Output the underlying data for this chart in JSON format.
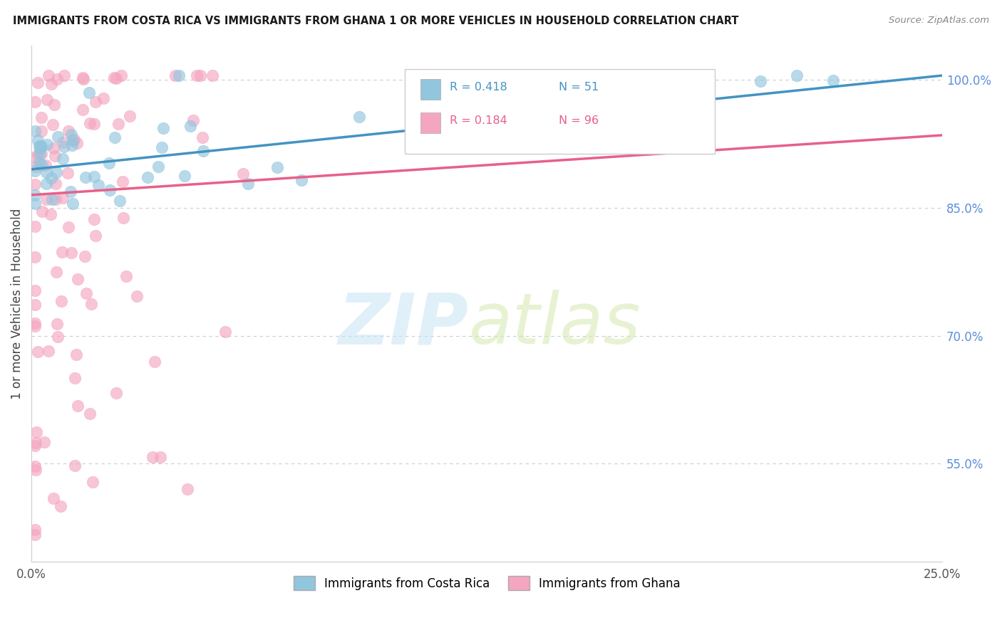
{
  "title": "IMMIGRANTS FROM COSTA RICA VS IMMIGRANTS FROM GHANA 1 OR MORE VEHICLES IN HOUSEHOLD CORRELATION CHART",
  "source": "Source: ZipAtlas.com",
  "ylabel": "1 or more Vehicles in Household",
  "ytick_labels": [
    "55.0%",
    "70.0%",
    "85.0%",
    "100.0%"
  ],
  "ytick_values": [
    0.55,
    0.7,
    0.85,
    1.0
  ],
  "xmin": 0.0,
  "xmax": 0.25,
  "ymin": 0.435,
  "ymax": 1.04,
  "costa_rica_R": 0.418,
  "costa_rica_N": 51,
  "ghana_R": 0.184,
  "ghana_N": 96,
  "costa_rica_color": "#92c5de",
  "ghana_color": "#f4a6c0",
  "costa_rica_line_color": "#4393c3",
  "ghana_line_color": "#e8608a",
  "legend_costa_rica": "Immigrants from Costa Rica",
  "legend_ghana": "Immigrants from Ghana",
  "cr_line_x0": 0.0,
  "cr_line_y0": 0.895,
  "cr_line_x1": 0.25,
  "cr_line_y1": 1.005,
  "gh_line_x0": 0.0,
  "gh_line_y0": 0.865,
  "gh_line_x1": 0.25,
  "gh_line_y1": 0.935
}
